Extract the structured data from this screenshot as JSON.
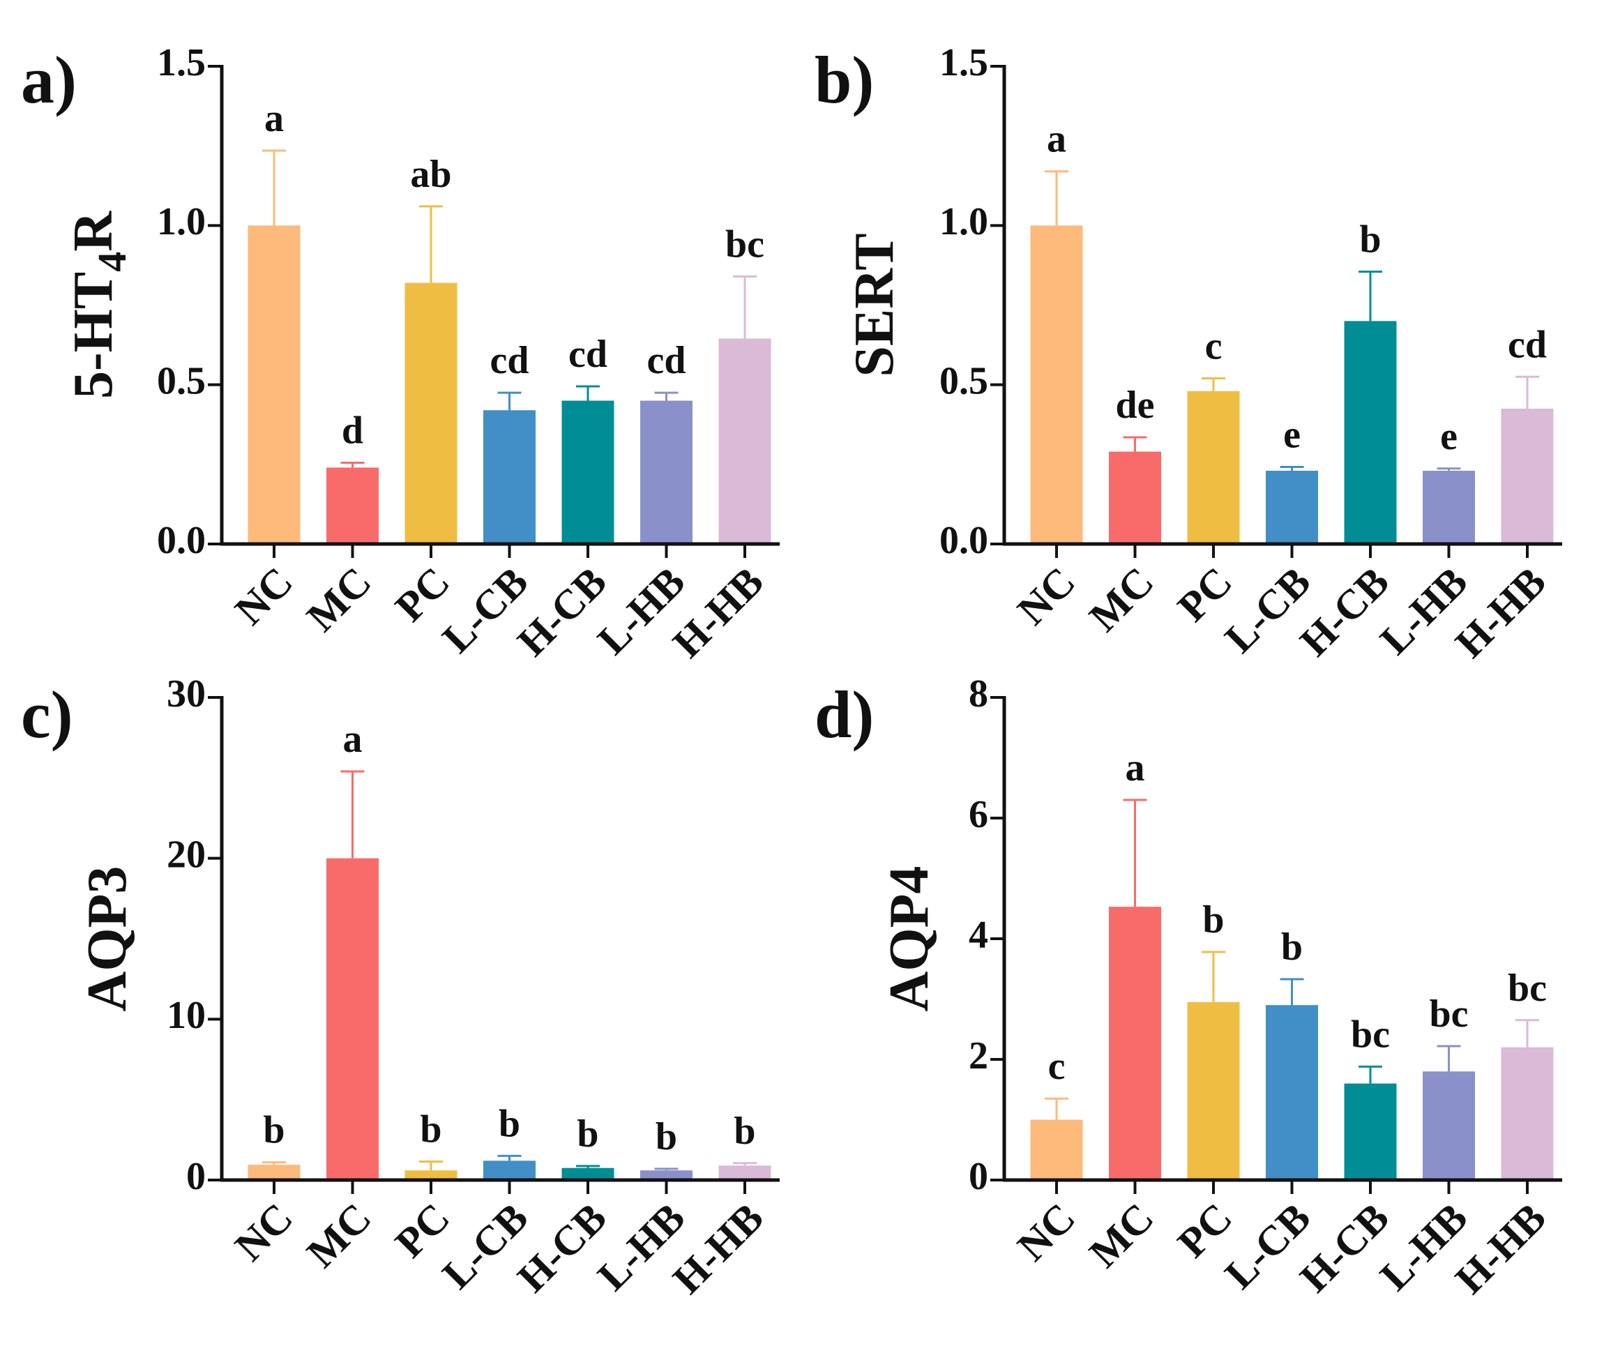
{
  "colors": {
    "bars": [
      "#FDBA7A",
      "#F96B6B",
      "#F0BD43",
      "#418FC6",
      "#018D95",
      "#8A90C9",
      "#DABAD6"
    ],
    "axis": "#111111"
  },
  "chart_data": [
    {
      "type": "bar",
      "panel_label": "a)",
      "ylabel": "5-HT",
      "ylabel_sub": "4",
      "ylabel_suffix": "R",
      "categories": [
        "NC",
        "MC",
        "PC",
        "L-CB",
        "H-CB",
        "L-HB",
        "H-HB"
      ],
      "values": [
        1.0,
        0.24,
        0.82,
        0.42,
        0.45,
        0.45,
        0.645
      ],
      "errors": [
        0.235,
        0.015,
        0.24,
        0.055,
        0.045,
        0.025,
        0.195
      ],
      "significance": [
        "a",
        "d",
        "ab",
        "cd",
        "cd",
        "cd",
        "bc"
      ],
      "ylim": [
        0,
        1.5
      ],
      "yticks": [
        0.0,
        0.5,
        1.0,
        1.5
      ],
      "ytick_labels": [
        "0.0",
        "0.5",
        "1.0",
        "1.5"
      ]
    },
    {
      "type": "bar",
      "panel_label": "b)",
      "ylabel": "SERT",
      "ylabel_sub": "",
      "ylabel_suffix": "",
      "categories": [
        "NC",
        "MC",
        "PC",
        "L-CB",
        "H-CB",
        "L-HB",
        "H-HB"
      ],
      "values": [
        1.0,
        0.29,
        0.48,
        0.23,
        0.7,
        0.23,
        0.425
      ],
      "errors": [
        0.17,
        0.045,
        0.04,
        0.012,
        0.155,
        0.007,
        0.1
      ],
      "significance": [
        "a",
        "de",
        "c",
        "e",
        "b",
        "e",
        "cd"
      ],
      "ylim": [
        0,
        1.5
      ],
      "yticks": [
        0.0,
        0.5,
        1.0,
        1.5
      ],
      "ytick_labels": [
        "0.0",
        "0.5",
        "1.0",
        "1.5"
      ]
    },
    {
      "type": "bar",
      "panel_label": "c)",
      "ylabel": "AQP3",
      "ylabel_sub": "",
      "ylabel_suffix": "",
      "categories": [
        "NC",
        "MC",
        "PC",
        "L-CB",
        "H-CB",
        "L-HB",
        "H-HB"
      ],
      "values": [
        0.95,
        20.0,
        0.6,
        1.2,
        0.75,
        0.6,
        0.9
      ],
      "errors": [
        0.15,
        5.4,
        0.55,
        0.3,
        0.12,
        0.1,
        0.15
      ],
      "significance": [
        "b",
        "a",
        "b",
        "b",
        "b",
        "b",
        "b"
      ],
      "ylim": [
        0,
        30
      ],
      "yticks": [
        0,
        10,
        20,
        30
      ],
      "ytick_labels": [
        "0",
        "10",
        "20",
        "30"
      ]
    },
    {
      "type": "bar",
      "panel_label": "d)",
      "ylabel": "AQP4",
      "ylabel_sub": "",
      "ylabel_suffix": "",
      "categories": [
        "NC",
        "MC",
        "PC",
        "L-CB",
        "H-CB",
        "L-HB",
        "H-HB"
      ],
      "values": [
        1.0,
        4.53,
        2.95,
        2.9,
        1.6,
        1.8,
        2.2
      ],
      "errors": [
        0.35,
        1.77,
        0.83,
        0.43,
        0.28,
        0.42,
        0.45
      ],
      "significance": [
        "c",
        "a",
        "b",
        "b",
        "bc",
        "bc",
        "bc"
      ],
      "ylim": [
        0,
        8
      ],
      "yticks": [
        0,
        2,
        4,
        6,
        8
      ],
      "ytick_labels": [
        "0",
        "2",
        "4",
        "6",
        "8"
      ]
    }
  ]
}
